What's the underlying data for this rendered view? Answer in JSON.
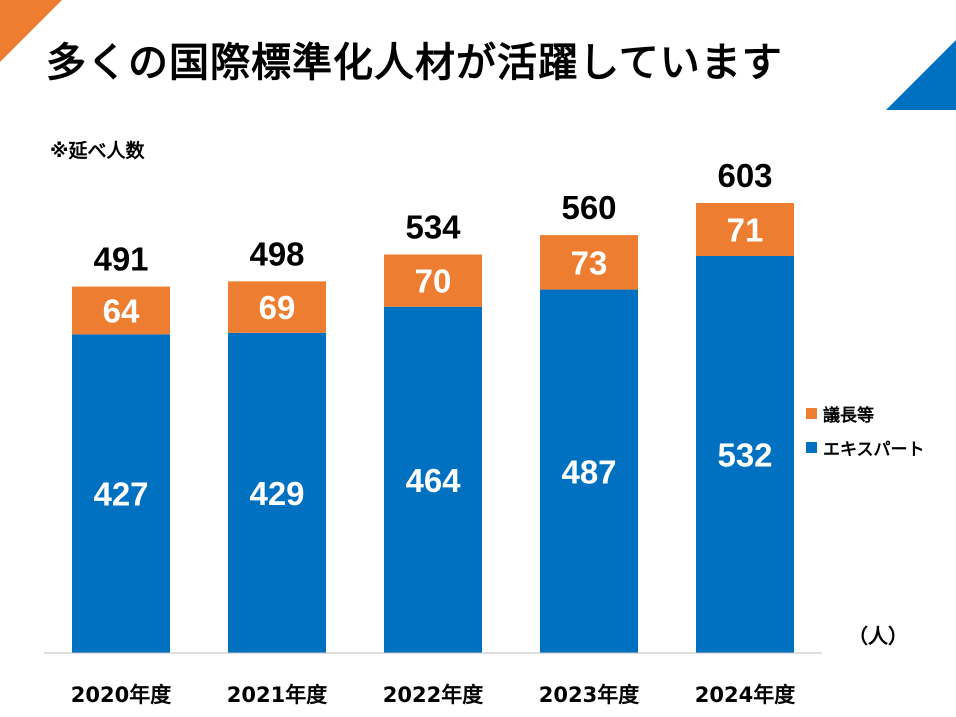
{
  "title": "多くの国際標準化人材が活躍しています",
  "note": "※延べ人数",
  "colors": {
    "expert": "#0070C0",
    "chair": "#ED7D31",
    "accent_left": "#ED7D31",
    "accent_right": "#0070C0"
  },
  "chart_data": {
    "type": "bar",
    "stacked": true,
    "categories": [
      "2020年度",
      "2021年度",
      "2022年度",
      "2023年度",
      "2024年度"
    ],
    "series": [
      {
        "name": "エキスパート",
        "values": [
          427,
          429,
          464,
          487,
          532
        ]
      },
      {
        "name": "議長等",
        "values": [
          64,
          69,
          70,
          73,
          71
        ]
      }
    ],
    "totals": [
      491,
      498,
      534,
      560,
      603
    ],
    "ylabel": "（人）",
    "ylim": [
      0,
      603
    ],
    "grid": false,
    "legend_position": "right"
  }
}
